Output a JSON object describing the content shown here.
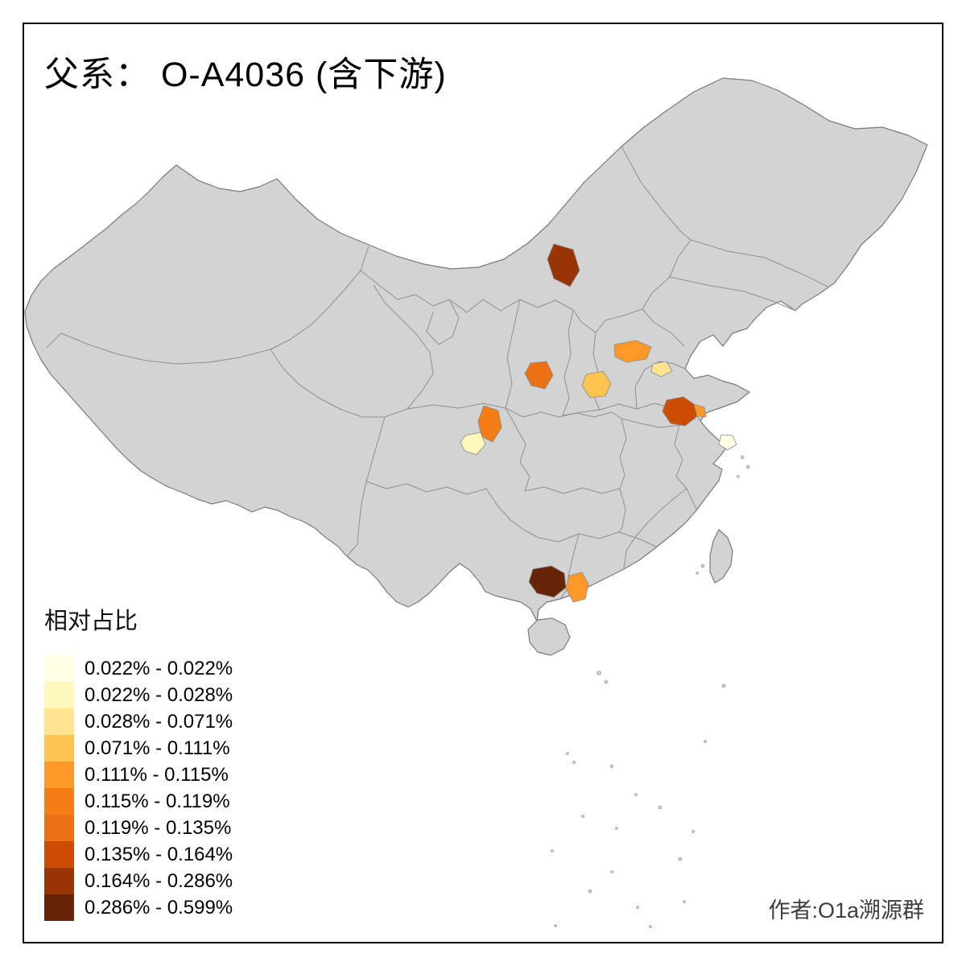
{
  "title": "父系： O-A4036 (含下游)",
  "legend": {
    "title": "相对占比",
    "classes": [
      {
        "color": "#FFFFE5",
        "label": "0.022% - 0.022%"
      },
      {
        "color": "#FFF7BC",
        "label": "0.022% - 0.028%"
      },
      {
        "color": "#FEE391",
        "label": "0.028% - 0.071%"
      },
      {
        "color": "#FEC44F",
        "label": "0.071% - 0.111%"
      },
      {
        "color": "#FE9929",
        "label": "0.111% - 0.115%"
      },
      {
        "color": "#F57D15",
        "label": "0.115% - 0.119%"
      },
      {
        "color": "#EC7014",
        "label": "0.119% - 0.135%"
      },
      {
        "color": "#CC4C02",
        "label": "0.135% - 0.164%"
      },
      {
        "color": "#993404",
        "label": "0.164% - 0.286%"
      },
      {
        "color": "#662506",
        "label": "0.286% - 0.599%"
      }
    ]
  },
  "attribution": "作者:O1a溯源群",
  "map": {
    "base_fill": "#D3D3D3",
    "outline_color": "#7A7A7A",
    "province_border_color": "#8F8F8F",
    "sea_color": "#FFFFFF",
    "highlighted_regions": [
      {
        "id": "region-0",
        "color": "#993404"
      },
      {
        "id": "region-1",
        "color": "#FE9929"
      },
      {
        "id": "region-2",
        "color": "#FEE391"
      },
      {
        "id": "region-3",
        "color": "#EC7014"
      },
      {
        "id": "region-4",
        "color": "#FEC44F"
      },
      {
        "id": "region-5",
        "color": "#F57D15"
      },
      {
        "id": "region-6",
        "color": "#FFF7BC"
      },
      {
        "id": "region-7",
        "color": "#CC4C02"
      },
      {
        "id": "region-8",
        "color": "#FE9929"
      },
      {
        "id": "region-9",
        "color": "#FFFFE5"
      },
      {
        "id": "region-10",
        "color": "#662506"
      },
      {
        "id": "region-11",
        "color": "#FE9929"
      }
    ]
  }
}
